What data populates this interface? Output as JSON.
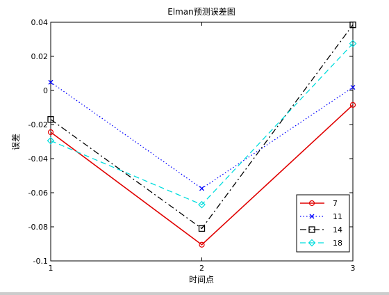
{
  "chart_data": {
    "type": "line",
    "title": "Elman预测误差图",
    "xlabel": "时间点",
    "ylabel": "误差",
    "x": [
      1,
      2,
      3
    ],
    "xlim": [
      1,
      3
    ],
    "ylim": [
      -0.1,
      0.04
    ],
    "xticks": [
      1,
      2,
      3
    ],
    "yticks": [
      -0.1,
      -0.08,
      -0.06,
      -0.04,
      -0.02,
      0,
      0.02,
      0.04
    ],
    "ytick_labels": [
      "-0.1",
      "-0.08",
      "-0.06",
      "-0.04",
      "-0.02",
      "0",
      "0.02",
      "0.04"
    ],
    "grid": false,
    "legend_position": "bottom-right",
    "series": [
      {
        "name": "7",
        "values": [
          -0.0245,
          -0.0905,
          -0.0085
        ],
        "color": "#e00000",
        "dash": "solid",
        "marker": "circle"
      },
      {
        "name": "11",
        "values": [
          0.0048,
          -0.0575,
          0.0018
        ],
        "color": "#0000ff",
        "dash": "dotted",
        "marker": "x"
      },
      {
        "name": "14",
        "values": [
          -0.017,
          -0.081,
          0.0385
        ],
        "color": "#000000",
        "dash": "dashdot",
        "marker": "square"
      },
      {
        "name": "18",
        "values": [
          -0.0295,
          -0.067,
          0.0275
        ],
        "color": "#00dddd",
        "dash": "dashed",
        "marker": "diamond"
      }
    ]
  }
}
